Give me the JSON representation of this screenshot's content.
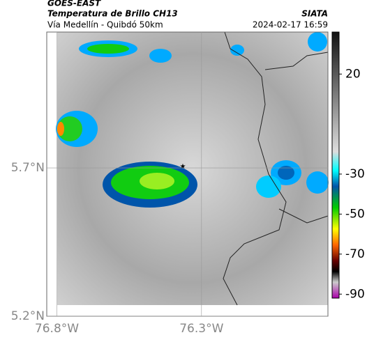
{
  "header": {
    "source": "GOES-EAST",
    "title": "Temperatura de Brillo CH13",
    "route": "Vía Medellín - Quibdó 50km",
    "org": "SIATA",
    "datetime": "2024-02-17 16:59"
  },
  "map": {
    "xlim": [
      -76.835,
      -75.863
    ],
    "ylim": [
      5.2,
      6.158
    ],
    "xticks": [
      {
        "value": -76.8,
        "label": "76.8°W"
      },
      {
        "value": -76.3,
        "label": "76.3°W"
      }
    ],
    "yticks": [
      {
        "value": 5.2,
        "label": "5.2°N"
      },
      {
        "value": 5.7,
        "label": "5.7°N"
      }
    ],
    "grid": true
  },
  "colorbar": {
    "lim": [
      41,
      -92
    ],
    "ticks": [
      20,
      -30,
      -50,
      -70,
      -90
    ]
  }
}
